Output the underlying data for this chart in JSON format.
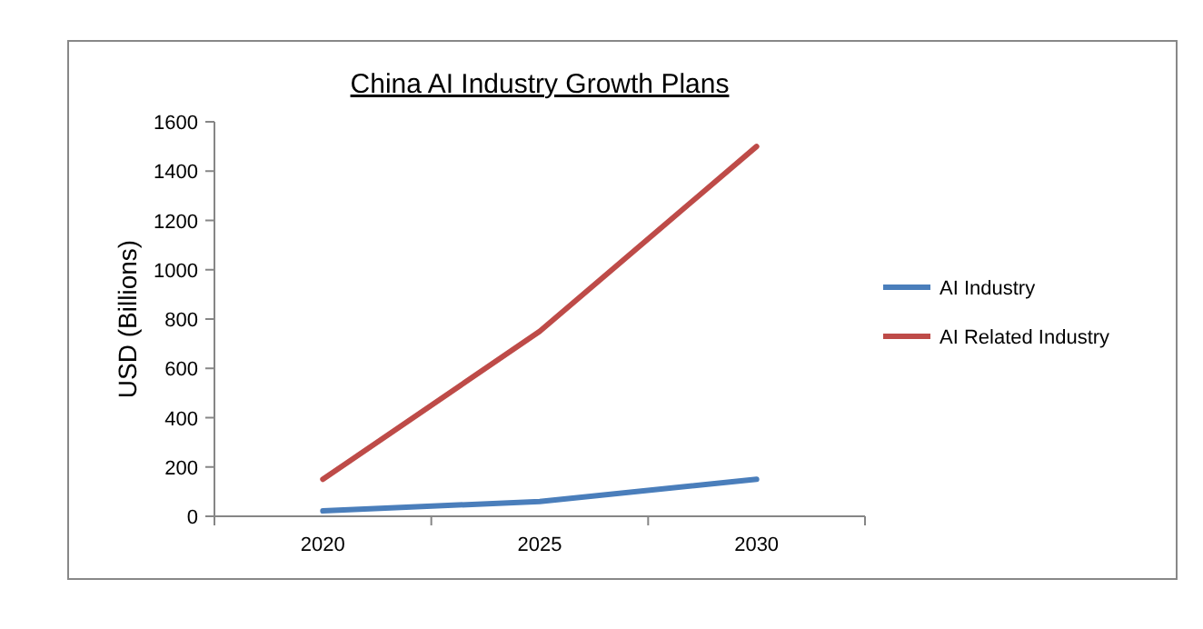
{
  "chart_data": {
    "type": "line",
    "title": "China AI Industry Growth Plans",
    "ylabel": "USD (Billions)",
    "categories": [
      "2020",
      "2025",
      "2030"
    ],
    "series": [
      {
        "name": "AI Industry",
        "color": "#4a7ebb",
        "values": [
          22,
          60,
          150
        ]
      },
      {
        "name": "AI Related Industry",
        "color": "#be4b48",
        "values": [
          150,
          750,
          1500
        ]
      }
    ],
    "ylim": [
      0,
      1600
    ],
    "yticks": [
      0,
      200,
      400,
      600,
      800,
      1000,
      1200,
      1400,
      1600
    ],
    "grid": false,
    "legend": "right",
    "marker": "none",
    "line_style": "solid"
  }
}
